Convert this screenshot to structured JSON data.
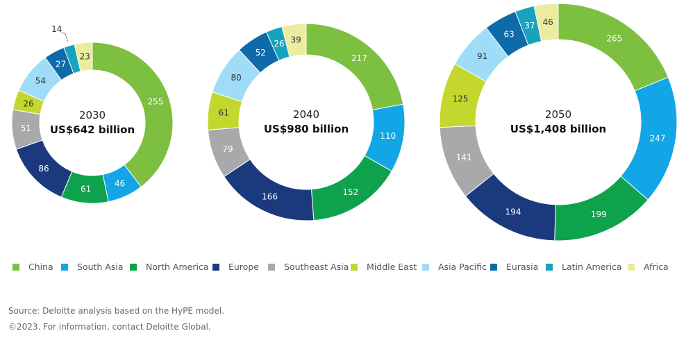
{
  "chart_data": [
    {
      "type": "pie",
      "variant": "donut",
      "year": "2030",
      "total_label": "US$642 billion",
      "categories": [
        "China",
        "South Asia",
        "North America",
        "Europe",
        "Southeast Asia",
        "Middle East",
        "Asia Pacific",
        "Eurasia",
        "Latin America",
        "Africa"
      ],
      "values": [
        255,
        46,
        61,
        86,
        51,
        26,
        54,
        27,
        14,
        23
      ]
    },
    {
      "type": "pie",
      "variant": "donut",
      "year": "2040",
      "total_label": "US$980 billion",
      "categories": [
        "China",
        "South Asia",
        "North America",
        "Europe",
        "Southeast Asia",
        "Middle East",
        "Asia Pacific",
        "Eurasia",
        "Latin America",
        "Africa"
      ],
      "values": [
        217,
        110,
        152,
        166,
        79,
        61,
        80,
        52,
        26,
        39
      ]
    },
    {
      "type": "pie",
      "variant": "donut",
      "year": "2050",
      "total_label": "US$1,408 billion",
      "categories": [
        "China",
        "South Asia",
        "North America",
        "Europe",
        "Southeast Asia",
        "Middle East",
        "Asia Pacific",
        "Eurasia",
        "Latin America",
        "Africa"
      ],
      "values": [
        265,
        247,
        199,
        194,
        141,
        125,
        91,
        63,
        37,
        46
      ]
    }
  ],
  "legend": [
    {
      "label": "China",
      "color": "#7dbf3f"
    },
    {
      "label": "South Asia",
      "color": "#12a6e6"
    },
    {
      "label": "North America",
      "color": "#0fa24c"
    },
    {
      "label": "Europe",
      "color": "#1b3a7e"
    },
    {
      "label": "Southeast Asia",
      "color": "#a7a9ab"
    },
    {
      "label": "Middle East",
      "color": "#c3d72d"
    },
    {
      "label": "Asia Pacific",
      "color": "#9fdcf7"
    },
    {
      "label": "Eurasia",
      "color": "#0f6aa9"
    },
    {
      "label": "Latin America",
      "color": "#17a3bd"
    },
    {
      "label": "Africa",
      "color": "#ecec9e"
    }
  ],
  "dark_label_categories": [
    "Middle East",
    "Asia Pacific",
    "Africa"
  ],
  "footer": {
    "source": "Source: Deloitte analysis based on the HyPE model.",
    "copyright": "©2023. For information, contact Deloitte Global."
  }
}
